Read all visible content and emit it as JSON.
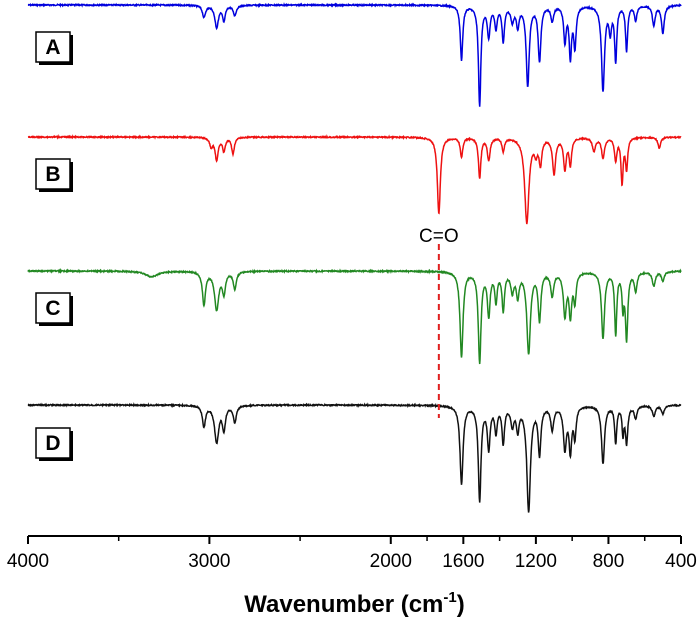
{
  "chart_data": {
    "type": "line",
    "xlabel_main": "Wavenumber (cm",
    "xlabel_sup": "-1",
    "xlabel_tail": ")",
    "xlim": [
      4000,
      400
    ],
    "x_reversed": true,
    "x_ticks": [
      4000,
      3000,
      2000,
      1600,
      1200,
      800,
      400
    ],
    "x_tick_labels": [
      "4000",
      "3000",
      "2000",
      "1600",
      "1200",
      "800",
      "400"
    ],
    "stacked_offsets": true,
    "y_axis_shown": false,
    "grid": false,
    "legend": "none",
    "annotation": {
      "text": "C=O",
      "x": 1735,
      "style": "dashed-vertical",
      "color": "#e02020"
    },
    "series": [
      {
        "name": "A",
        "color": "#0000dd",
        "baseline": 0.0,
        "peaks": [
          [
            3030,
            0.12,
            10
          ],
          [
            2960,
            0.22,
            12
          ],
          [
            2920,
            0.15,
            9
          ],
          [
            2860,
            0.1,
            10
          ],
          [
            1610,
            0.55,
            8
          ],
          [
            1510,
            1.0,
            8
          ],
          [
            1460,
            0.3,
            9
          ],
          [
            1420,
            0.22,
            8
          ],
          [
            1380,
            0.35,
            8
          ],
          [
            1330,
            0.15,
            10
          ],
          [
            1300,
            0.2,
            9
          ],
          [
            1245,
            0.8,
            10
          ],
          [
            1180,
            0.55,
            9
          ],
          [
            1110,
            0.15,
            9
          ],
          [
            1040,
            0.35,
            8
          ],
          [
            1010,
            0.5,
            8
          ],
          [
            985,
            0.4,
            8
          ],
          [
            830,
            0.85,
            10
          ],
          [
            790,
            0.25,
            8
          ],
          [
            760,
            0.55,
            7
          ],
          [
            700,
            0.45,
            7
          ],
          [
            650,
            0.15,
            8
          ],
          [
            550,
            0.2,
            9
          ],
          [
            500,
            0.28,
            9
          ]
        ]
      },
      {
        "name": "B",
        "color": "#ee1111",
        "baseline": 0.0,
        "peaks": [
          [
            2990,
            0.1,
            10
          ],
          [
            2960,
            0.25,
            10
          ],
          [
            2920,
            0.15,
            9
          ],
          [
            2870,
            0.18,
            9
          ],
          [
            1735,
            0.85,
            10
          ],
          [
            1610,
            0.22,
            8
          ],
          [
            1510,
            0.45,
            8
          ],
          [
            1460,
            0.25,
            9
          ],
          [
            1380,
            0.15,
            8
          ],
          [
            1250,
            0.95,
            14
          ],
          [
            1200,
            0.15,
            10
          ],
          [
            1175,
            0.28,
            9
          ],
          [
            1100,
            0.4,
            10
          ],
          [
            1040,
            0.35,
            9
          ],
          [
            1010,
            0.3,
            8
          ],
          [
            880,
            0.15,
            10
          ],
          [
            830,
            0.22,
            10
          ],
          [
            760,
            0.25,
            8
          ],
          [
            725,
            0.5,
            7
          ],
          [
            700,
            0.35,
            7
          ],
          [
            520,
            0.12,
            9
          ]
        ]
      },
      {
        "name": "C",
        "color": "#228822",
        "baseline": 0.0,
        "peaks": [
          [
            3320,
            0.06,
            40
          ],
          [
            3030,
            0.35,
            10
          ],
          [
            2960,
            0.4,
            14
          ],
          [
            2920,
            0.22,
            10
          ],
          [
            2860,
            0.18,
            10
          ],
          [
            1610,
            0.9,
            10
          ],
          [
            1510,
            0.95,
            9
          ],
          [
            1460,
            0.45,
            9
          ],
          [
            1420,
            0.3,
            8
          ],
          [
            1380,
            0.4,
            8
          ],
          [
            1330,
            0.2,
            10
          ],
          [
            1300,
            0.25,
            9
          ],
          [
            1240,
            0.85,
            12
          ],
          [
            1180,
            0.5,
            9
          ],
          [
            1110,
            0.25,
            10
          ],
          [
            1040,
            0.45,
            10
          ],
          [
            1010,
            0.45,
            9
          ],
          [
            985,
            0.3,
            8
          ],
          [
            830,
            0.7,
            10
          ],
          [
            760,
            0.65,
            7
          ],
          [
            720,
            0.35,
            6
          ],
          [
            700,
            0.7,
            8
          ],
          [
            650,
            0.2,
            9
          ],
          [
            550,
            0.15,
            10
          ],
          [
            500,
            0.1,
            9
          ]
        ]
      },
      {
        "name": "D",
        "color": "#111111",
        "baseline": 0.0,
        "peaks": [
          [
            3030,
            0.2,
            10
          ],
          [
            2960,
            0.35,
            14
          ],
          [
            2920,
            0.22,
            10
          ],
          [
            2860,
            0.16,
            10
          ],
          [
            1610,
            0.75,
            10
          ],
          [
            1510,
            0.9,
            9
          ],
          [
            1460,
            0.4,
            9
          ],
          [
            1420,
            0.25,
            8
          ],
          [
            1380,
            0.35,
            8
          ],
          [
            1330,
            0.18,
            10
          ],
          [
            1300,
            0.22,
            9
          ],
          [
            1240,
            1.0,
            12
          ],
          [
            1180,
            0.45,
            9
          ],
          [
            1110,
            0.22,
            10
          ],
          [
            1040,
            0.4,
            10
          ],
          [
            1010,
            0.42,
            9
          ],
          [
            985,
            0.28,
            8
          ],
          [
            830,
            0.55,
            10
          ],
          [
            760,
            0.35,
            7
          ],
          [
            720,
            0.25,
            6
          ],
          [
            700,
            0.35,
            8
          ],
          [
            650,
            0.12,
            9
          ],
          [
            550,
            0.1,
            10
          ],
          [
            500,
            0.08,
            9
          ]
        ]
      }
    ]
  }
}
